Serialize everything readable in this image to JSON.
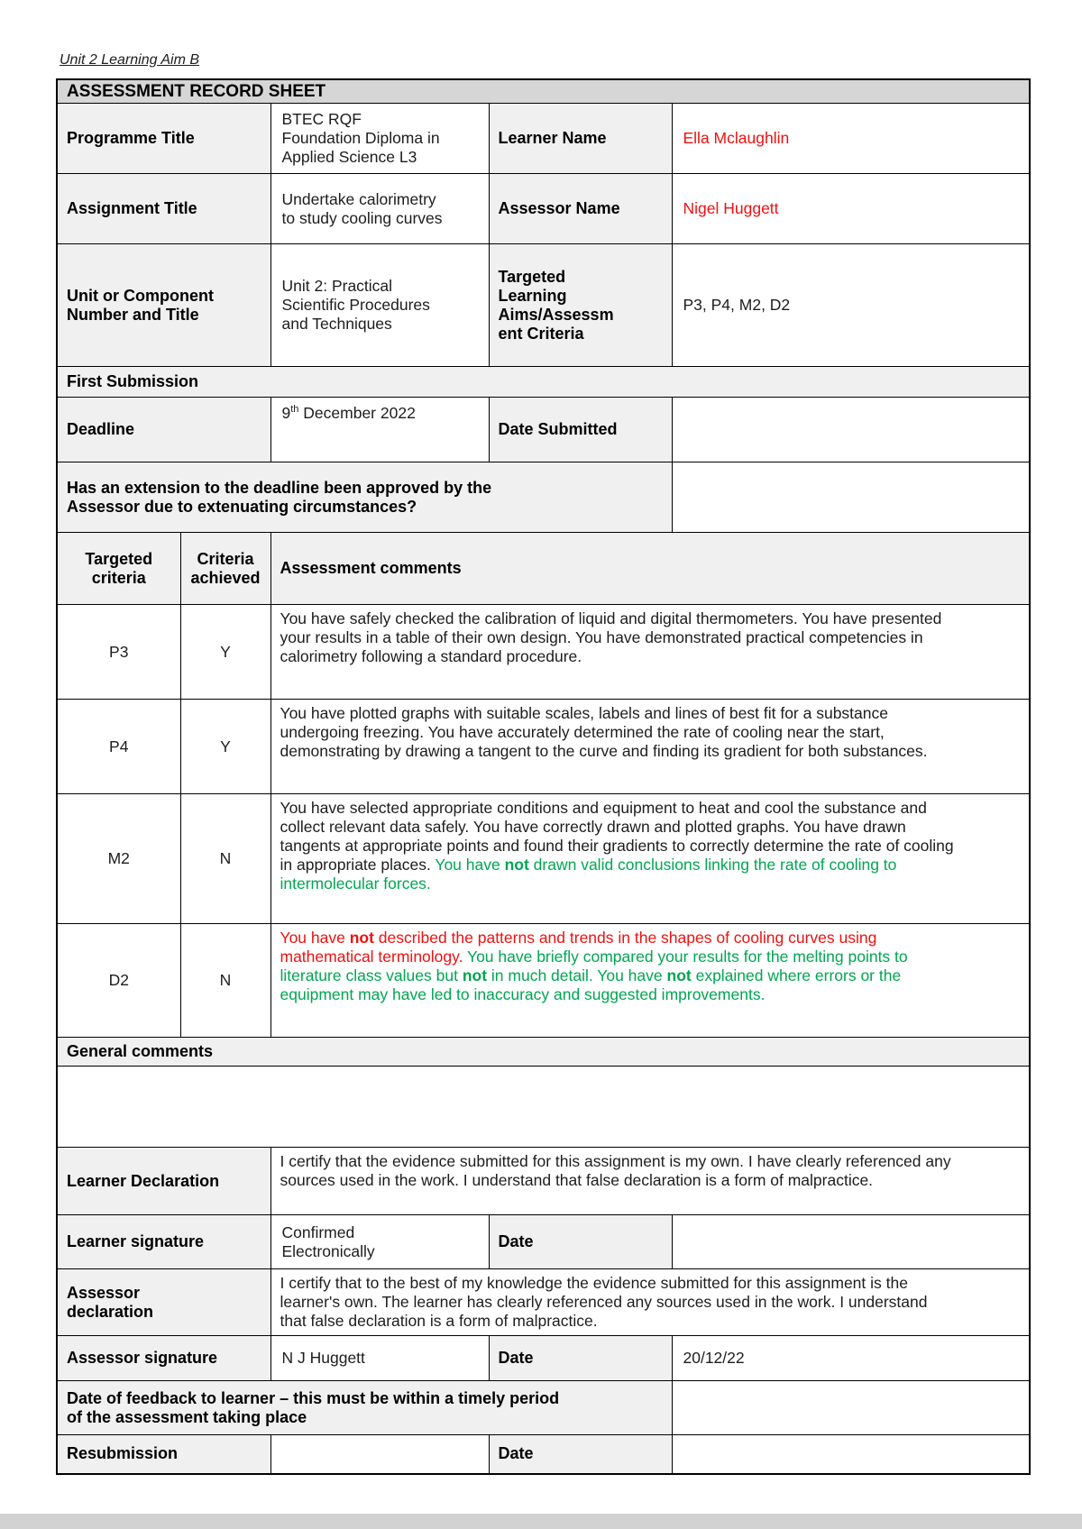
{
  "page": {
    "header": "Unit 2 Learning Aim B"
  },
  "colors": {
    "red": "#ee1111",
    "green": "#00a651",
    "black": "#1d1d1d",
    "label_bg": "#f0f0f0",
    "band_bg": "#d6d6d6"
  },
  "sheet": {
    "title": "ASSESSMENT RECORD SHEET",
    "info": {
      "programme_label": "Programme Title",
      "programme_value": "BTEC RQF Foundation Diploma in Applied Science L3",
      "learner_label": "Learner Name",
      "learner_value": "Ella Mclaughlin",
      "assignment_label": "Assignment Title",
      "assignment_value": "Undertake calorimetry to study cooling curves",
      "assessor_label": "Assessor Name",
      "assessor_value": "Nigel Huggett",
      "unit_label": "Unit or Component Number and Title",
      "unit_value": "Unit 2: Practical Scientific Procedures and Techniques",
      "aims_label": "Targeted Learning Aims/Assessment Criteria",
      "aims_value": "P3, P4, M2, D2"
    },
    "first_submission": {
      "band_label": "First Submission",
      "deadline_label": "Deadline",
      "deadline_day": "9",
      "deadline_suffix": "th",
      "deadline_rest": " December 2022",
      "date_submitted_label": "Date Submitted",
      "date_submitted_value": "",
      "extension_question": "Has an extension to the deadline been approved by the Assessor due to extenuating circumstances?",
      "extension_answer": ""
    },
    "criteria": {
      "headers": {
        "targeted": "Targeted criteria",
        "achieved": "Criteria achieved",
        "comments": "Assessment comments"
      },
      "rows": [
        {
          "code": "P3",
          "achieved": "Y",
          "segments": [
            {
              "text": "You have safely checked the calibration of liquid and digital thermometers. You have presented your results in a table of their own design. You have demonstrated practical competencies in calorimetry following a standard procedure."
            }
          ]
        },
        {
          "code": "P4",
          "achieved": "Y",
          "segments": [
            {
              "text": "You have plotted graphs with suitable scales, labels and lines of best fit for a substance undergoing freezing. You have accurately determined the rate of cooling near the start, demonstrating by drawing a tangent to the curve and finding its gradient for both substances."
            }
          ]
        },
        {
          "code": "M2",
          "achieved": "N",
          "segments": [
            {
              "text": "You have selected appropriate conditions and equipment to heat and cool the substance and collect relevant data safely. You have correctly drawn and plotted graphs. You have drawn tangents at appropriate points and found their gradients to correctly determine the rate of cooling in appropriate places. "
            },
            {
              "text": "You have ",
              "color": "green"
            },
            {
              "text": "not",
              "color": "green",
              "bold": true
            },
            {
              "text": " drawn valid conclusions linking the rate of cooling to intermolecular forces.",
              "color": "green"
            }
          ]
        },
        {
          "code": "D2",
          "achieved": "N",
          "segments": [
            {
              "text": "You have ",
              "color": "red"
            },
            {
              "text": "not",
              "color": "red",
              "bold": true
            },
            {
              "text": " described the patterns and trends in the shapes of cooling curves using mathematical terminology. ",
              "color": "red"
            },
            {
              "text": "You have briefly compared your results for the melting points to literature class values but ",
              "color": "green"
            },
            {
              "text": "not",
              "color": "green",
              "bold": true
            },
            {
              "text": " in much detail. You have ",
              "color": "green"
            },
            {
              "text": "not",
              "color": "green",
              "bold": true
            },
            {
              "text": " explained where errors or the equipment may have led to inaccuracy and suggested improvements.",
              "color": "green"
            }
          ]
        }
      ]
    },
    "general_comments": {
      "band_label": "General comments",
      "value": ""
    },
    "declarations": {
      "learner_label": "Learner Declaration",
      "learner_text": "I certify that the evidence submitted for this assignment is my own. I have clearly referenced any sources used in the work. I understand that false declaration is a form of malpractice.",
      "learner_sig_label": "Learner signature",
      "learner_sig_value": "Confirmed Electronically",
      "learner_date_label": "Date",
      "learner_date_value": "",
      "assessor_label": "Assessor declaration",
      "assessor_text": "I certify that to the best of my knowledge the evidence submitted for this assignment is the learner's own. The learner has clearly referenced any sources used in the work. I understand that false declaration is a form of malpractice.",
      "assessor_sig_label": "Assessor signature",
      "assessor_sig_value": "N J Huggett",
      "assessor_date_label": "Date",
      "assessor_date_value": "20/12/22",
      "feedback_segments": [
        {
          "text": "Date of feedback to learner – ",
          "bold": true
        },
        {
          "text": "this must be within a timely period of the assessment taking place"
        }
      ],
      "feedback_value": "",
      "resubmission_label": "Resubmission",
      "resubmission_value": "",
      "resubmission_date_label": "Date",
      "resubmission_date_value": ""
    }
  }
}
